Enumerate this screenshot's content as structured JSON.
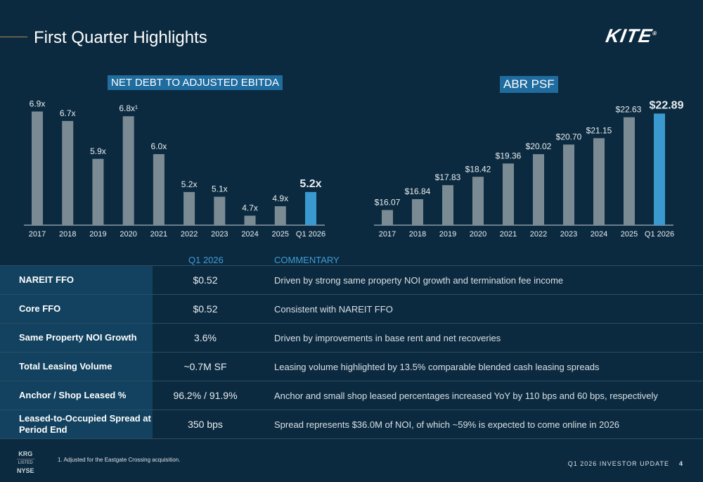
{
  "header": {
    "title": "First Quarter Highlights",
    "logo": "KITE"
  },
  "colors": {
    "background": "#0c2a3f",
    "bar": "#7a8b94",
    "highlight": "#3a9ad0",
    "label_bg": "#12425f",
    "accent": "#3d9bd6"
  },
  "chart_data": [
    {
      "type": "bar",
      "title": "NET DEBT TO ADJUSTED EBITDA",
      "categories": [
        "2017",
        "2018",
        "2019",
        "2020",
        "2021",
        "2022",
        "2023",
        "2024",
        "2025",
        "Q1 2026"
      ],
      "values": [
        6.9,
        6.7,
        5.9,
        6.8,
        6.0,
        5.2,
        5.1,
        4.7,
        4.9,
        5.2
      ],
      "labels": [
        "6.9x",
        "6.7x",
        "5.9x",
        "6.8x¹",
        "6.0x",
        "5.2x",
        "5.1x",
        "4.7x",
        "4.9x",
        "5.2x"
      ],
      "ylim": [
        4.5,
        7.0
      ],
      "highlight": "Q1 2026",
      "grid": false
    },
    {
      "type": "bar",
      "title": "ABR PSF",
      "categories": [
        "2017",
        "2018",
        "2019",
        "2020",
        "2021",
        "2022",
        "2023",
        "2024",
        "2025",
        "Q1 2026"
      ],
      "values": [
        16.07,
        16.84,
        17.83,
        18.42,
        19.36,
        20.02,
        20.7,
        21.15,
        22.63,
        22.89
      ],
      "labels": [
        "$16.07",
        "$16.84",
        "$17.83",
        "$18.42",
        "$19.36",
        "$20.02",
        "$20.70",
        "$21.15",
        "$22.63",
        "$22.89"
      ],
      "ylim": [
        15,
        23
      ],
      "highlight": "Q1 2026",
      "grid": false
    }
  ],
  "table": {
    "col_q": "Q1 2026",
    "col_comm": "COMMENTARY",
    "rows": [
      {
        "label": "NAREIT FFO",
        "value": "$0.52",
        "comment": "Driven by strong same property NOI growth and termination fee income"
      },
      {
        "label": "Core FFO",
        "value": "$0.52",
        "comment": "Consistent with NAREIT FFO"
      },
      {
        "label": "Same Property NOI Growth",
        "value": "3.6%",
        "comment": "Driven by improvements in base rent and net recoveries"
      },
      {
        "label": "Total Leasing Volume",
        "value": "~0.7M SF",
        "comment": "Leasing volume highlighted by 13.5% comparable blended cash leasing spreads"
      },
      {
        "label": "Anchor / Shop Leased %",
        "value": "96.2% / 91.9%",
        "comment": "Anchor and small shop leased percentages increased YoY by 110 bps and 60 bps, respectively"
      },
      {
        "label": "Leased-to-Occupied Spread at Period End",
        "value": "350 bps",
        "comment": "Spread represents $36.0M of NOI, of which ~59% is expected to come online in 2026"
      }
    ]
  },
  "footer": {
    "ticker": "KRG",
    "listed": "LISTED",
    "exchange": "NYSE",
    "footnote": "1.   Adjusted for the Eastgate Crossing acquisition.",
    "deck": "Q1 2026 INVESTOR UPDATE",
    "page": "4"
  }
}
